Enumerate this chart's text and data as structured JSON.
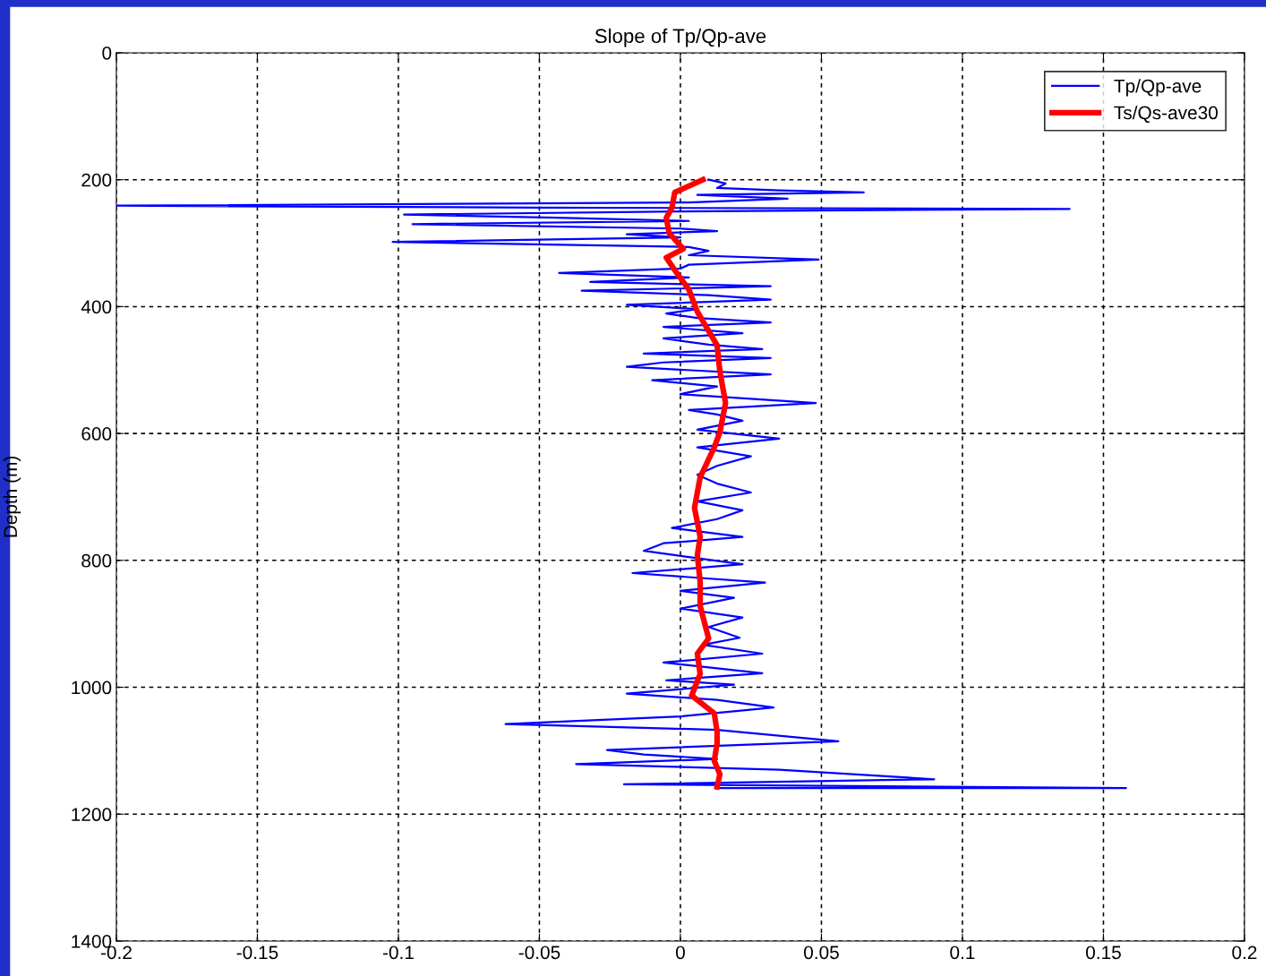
{
  "chart_data": {
    "type": "line",
    "title": "Slope of Tp/Qp-ave",
    "ylabel": "Depth (m)",
    "xlim": [
      -0.2,
      0.2
    ],
    "xticks": [
      -0.2,
      -0.15,
      -0.1,
      -0.05,
      0,
      0.05,
      0.1,
      0.15,
      0.2
    ],
    "ylim": [
      1400,
      0
    ],
    "yticks": [
      0,
      200,
      400,
      600,
      800,
      1000,
      1200,
      1400
    ],
    "grid": true,
    "legend": "top right",
    "line_style": "solid",
    "series": [
      {
        "name": "Tp/Qp-ave",
        "color": "#0000ff",
        "x": [
          0.01,
          0.016,
          0.013,
          0.035,
          0.065,
          0.006,
          0.038,
          0.003,
          -0.2,
          -0.051,
          0.138,
          0,
          -0.098,
          -0.044,
          0.003,
          -0.095,
          0,
          0.013,
          -0.019,
          0,
          -0.102,
          0.003,
          0.01,
          0.003,
          0.049,
          0.003,
          0,
          -0.043,
          0.003,
          -0.032,
          0.032,
          -0.035,
          0.01,
          0.032,
          -0.019,
          0.006,
          -0.005,
          0.006,
          0.032,
          -0.006,
          0.022,
          -0.006,
          0.01,
          0.029,
          -0.013,
          0.032,
          -0.006,
          -0.019,
          0.032,
          -0.01,
          0.013,
          0,
          0.048,
          0.003,
          0.013,
          0.022,
          0.006,
          0.035,
          0.006,
          0.025,
          0.013,
          0.006,
          0.013,
          0.025,
          0.006,
          0.022,
          0.013,
          -0.003,
          0.022,
          -0.006,
          -0.013,
          0.01,
          0.022,
          -0.017,
          0.03,
          0,
          0.019,
          0,
          0.022,
          0.01,
          0.021,
          0.008,
          0.029,
          -0.006,
          0.029,
          -0.005,
          0.019,
          -0.019,
          0.013,
          0.033,
          0,
          -0.062,
          0.013,
          0.056,
          -0.026,
          -0.013,
          0.013,
          -0.037,
          0.035,
          0.09,
          -0.02,
          0.158,
          0.013
        ],
        "values": [
          200,
          206,
          213,
          217,
          220,
          224,
          230,
          236,
          241,
          244,
          246,
          250,
          255,
          260,
          265,
          270,
          277,
          281,
          286,
          291,
          298,
          306,
          312,
          319,
          326,
          334,
          340,
          347,
          354,
          361,
          368,
          375,
          382,
          389,
          397,
          404,
          411,
          418,
          425,
          432,
          442,
          450,
          460,
          467,
          474,
          481,
          488,
          495,
          507,
          516,
          526,
          538,
          552,
          563,
          570,
          580,
          594,
          608,
          622,
          636,
          651,
          665,
          679,
          693,
          707,
          721,
          735,
          749,
          763,
          773,
          785,
          799,
          806,
          820,
          835,
          848,
          859,
          876,
          890,
          905,
          922,
          933,
          947,
          961,
          978,
          989,
          996,
          1010,
          1020,
          1032,
          1046,
          1058,
          1067,
          1085,
          1099,
          1106,
          1113,
          1121,
          1130,
          1145,
          1153,
          1159,
          1159
        ]
      },
      {
        "name": "Ts/Qs-ave30",
        "color": "#ff0000",
        "x": [
          0.008,
          -0.002,
          -0.003,
          -0.005,
          -0.004,
          0.001,
          -0.005,
          -0.001,
          0.003,
          0.006,
          0.013,
          0.014,
          0.016,
          0.014,
          0.012,
          0.007,
          0.005,
          0.007,
          0.006,
          0.007,
          0.007,
          0.01,
          0.006,
          0.007,
          0.004,
          0.012,
          0.013,
          0.013,
          0.012,
          0.014,
          0.013
        ],
        "values": [
          200,
          220,
          244,
          260,
          284,
          309,
          323,
          349,
          373,
          408,
          461,
          502,
          552,
          598,
          622,
          669,
          717,
          763,
          792,
          834,
          872,
          923,
          947,
          979,
          1013,
          1041,
          1070,
          1088,
          1116,
          1137,
          1157
        ]
      }
    ]
  }
}
